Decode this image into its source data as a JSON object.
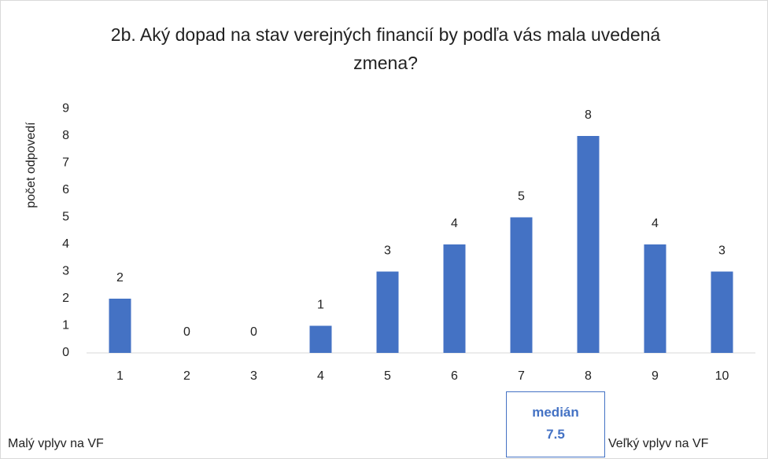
{
  "chart_data": {
    "type": "bar",
    "title": "2b. Aký dopad na stav verejných financií by podľa vás mala uvedená zmena?",
    "y_label": "počet odpovedí",
    "categories": [
      "1",
      "2",
      "3",
      "4",
      "5",
      "6",
      "7",
      "8",
      "9",
      "10"
    ],
    "values": [
      2,
      0,
      0,
      1,
      3,
      4,
      5,
      8,
      4,
      3
    ],
    "color": "#4472c4",
    "ylim": [
      0,
      9
    ],
    "yticks": [
      0,
      1,
      2,
      3,
      4,
      5,
      6,
      7,
      8,
      9
    ],
    "grid": false,
    "left_note": "Malý vplyv na VF",
    "right_note": "Veľký vplyv na VF",
    "median": {
      "label": "medián",
      "value": 7.5
    }
  }
}
